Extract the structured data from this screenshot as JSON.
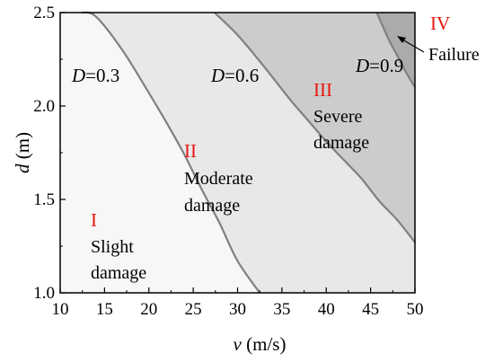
{
  "chart_data": {
    "type": "area",
    "x_axis": {
      "label_symbol": "v",
      "label_unit": " (m/s)",
      "range": [
        10,
        50
      ],
      "ticks": [
        10,
        15,
        20,
        25,
        30,
        35,
        40,
        45,
        50
      ],
      "tick_labels": [
        "10",
        "15",
        "20",
        "25",
        "30",
        "35",
        "40",
        "45",
        "50"
      ]
    },
    "y_axis": {
      "label_symbol": "d",
      "label_unit": " (m)",
      "range": [
        1.0,
        2.5
      ],
      "ticks": [
        1.0,
        1.5,
        2.0,
        2.5
      ],
      "tick_labels": [
        "1.0",
        "1.5",
        "2.0",
        "2.5"
      ]
    },
    "grid": false,
    "boundaries": [
      {
        "symbol": "D",
        "value_text": "=0.3",
        "points": [
          [
            12.4,
            2.5
          ],
          [
            14,
            2.48
          ],
          [
            17,
            2.3
          ],
          [
            20,
            2.07
          ],
          [
            22,
            1.91
          ],
          [
            24,
            1.74
          ],
          [
            26,
            1.55
          ],
          [
            28,
            1.37
          ],
          [
            30,
            1.17
          ],
          [
            32.5,
            1.0
          ]
        ]
      },
      {
        "symbol": "D",
        "value_text": "=0.6",
        "points": [
          [
            27.4,
            2.5
          ],
          [
            30,
            2.38
          ],
          [
            33,
            2.21
          ],
          [
            36,
            2.03
          ],
          [
            38,
            1.92
          ],
          [
            40,
            1.81
          ],
          [
            42,
            1.71
          ],
          [
            44,
            1.61
          ],
          [
            46,
            1.49
          ],
          [
            48,
            1.39
          ],
          [
            50,
            1.27
          ]
        ]
      },
      {
        "symbol": "D",
        "value_text": "=0.9",
        "points": [
          [
            45.7,
            2.5
          ],
          [
            47,
            2.36
          ],
          [
            48,
            2.27
          ],
          [
            49,
            2.18
          ],
          [
            50,
            2.1
          ]
        ]
      }
    ],
    "zones": [
      {
        "numeral": "I",
        "name_lines": [
          "Slight",
          "damage"
        ]
      },
      {
        "numeral": "II",
        "name_lines": [
          "Moderate",
          "damage"
        ]
      },
      {
        "numeral": "III",
        "name_lines": [
          "Severe",
          "damage"
        ]
      },
      {
        "numeral": "IV",
        "name_lines": [
          "Failure"
        ]
      }
    ],
    "colors": {
      "zone_fills": [
        "#f7f7f7",
        "#e8e8e8",
        "#cccccc",
        "#ababab"
      ],
      "boundary_stroke": "#808080",
      "numeral_color": "#e8140f",
      "axis_color": "#000000"
    }
  }
}
